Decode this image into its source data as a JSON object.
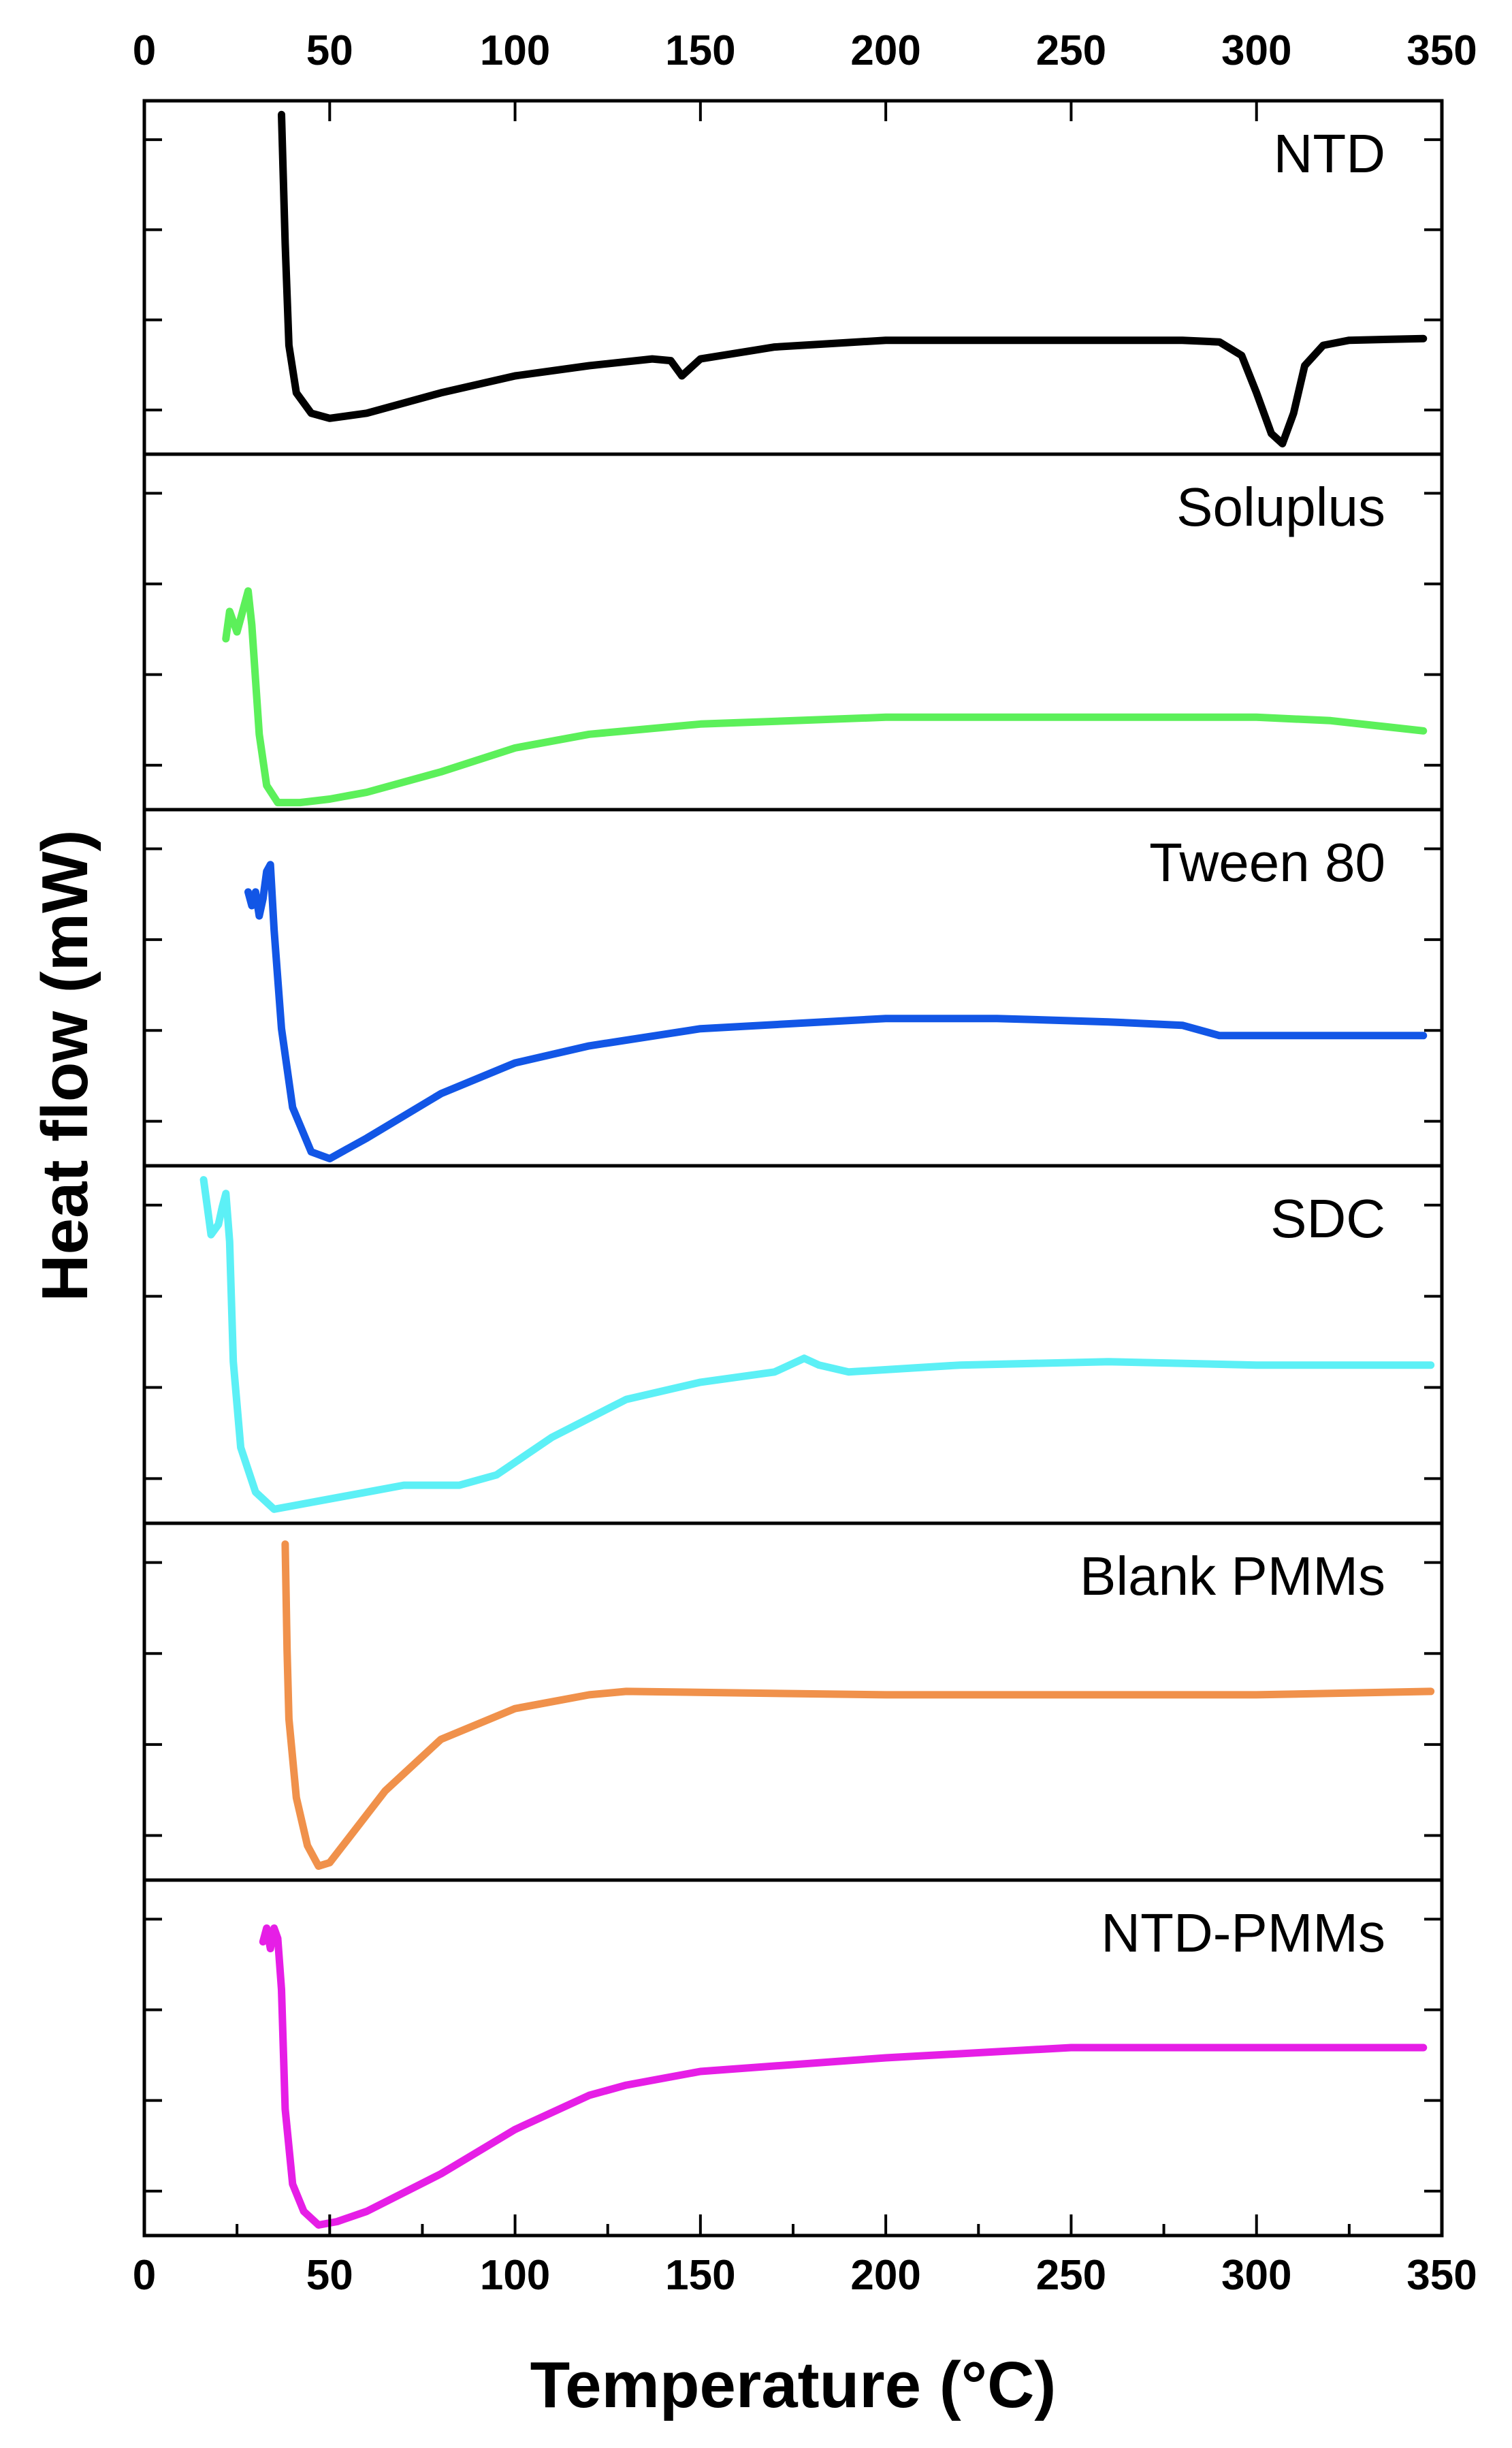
{
  "chart_data": {
    "type": "line",
    "xlabel": "Temperature (°C)",
    "ylabel": "Heat flow (mW)",
    "xlim": [
      0,
      350
    ],
    "xticks": [
      "0",
      "50",
      "100",
      "150",
      "200",
      "250",
      "300",
      "350"
    ],
    "top_xticks": [
      "0",
      "50",
      "100",
      "150",
      "200",
      "250",
      "300",
      "350"
    ],
    "y_tick_labels_shown": false,
    "series": [
      {
        "name": "NTD",
        "color": "#000000",
        "x": [
          37,
          38,
          39,
          41,
          45,
          50,
          60,
          80,
          100,
          120,
          137,
          142,
          145,
          150,
          170,
          200,
          250,
          280,
          290,
          296,
          300,
          304,
          307,
          310,
          313,
          318,
          325,
          345
        ],
        "y": [
          0.02,
          0.4,
          0.7,
          0.84,
          0.9,
          0.915,
          0.9,
          0.84,
          0.79,
          0.76,
          0.74,
          0.745,
          0.79,
          0.74,
          0.705,
          0.685,
          0.685,
          0.685,
          0.69,
          0.73,
          0.84,
          0.96,
          0.99,
          0.9,
          0.76,
          0.7,
          0.685,
          0.68
        ]
      },
      {
        "name": "Soluplus",
        "color": "#5cf05a",
        "x": [
          22,
          23,
          25,
          26,
          28,
          29,
          31,
          33,
          36,
          42,
          50,
          60,
          80,
          100,
          120,
          150,
          200,
          250,
          300,
          320,
          345
        ],
        "y": [
          0.52,
          0.44,
          0.5,
          0.46,
          0.38,
          0.48,
          0.8,
          0.95,
          1.0,
          1.0,
          0.99,
          0.97,
          0.91,
          0.84,
          0.8,
          0.77,
          0.75,
          0.75,
          0.75,
          0.76,
          0.79
        ]
      },
      {
        "name": "Tween 80",
        "color": "#1256e6",
        "x": [
          28,
          29,
          30,
          31,
          32,
          33,
          34,
          35,
          37,
          40,
          45,
          50,
          60,
          80,
          100,
          120,
          150,
          200,
          230,
          260,
          280,
          290,
          300,
          345
        ],
        "y": [
          0.22,
          0.26,
          0.22,
          0.29,
          0.24,
          0.16,
          0.14,
          0.33,
          0.62,
          0.85,
          0.98,
          1.0,
          0.94,
          0.81,
          0.72,
          0.67,
          0.62,
          0.59,
          0.59,
          0.6,
          0.61,
          0.64,
          0.64,
          0.64
        ]
      },
      {
        "name": "SDC",
        "color": "#5cf0f6",
        "x": [
          16,
          17,
          18,
          20,
          21,
          22,
          23,
          24,
          26,
          30,
          35,
          40,
          55,
          70,
          85,
          95,
          110,
          130,
          150,
          170,
          178,
          182,
          190,
          220,
          260,
          300,
          347
        ],
        "y": [
          0.02,
          0.1,
          0.18,
          0.15,
          0.1,
          0.06,
          0.2,
          0.55,
          0.8,
          0.93,
          0.98,
          0.97,
          0.94,
          0.91,
          0.91,
          0.88,
          0.77,
          0.66,
          0.61,
          0.58,
          0.54,
          0.56,
          0.58,
          0.56,
          0.55,
          0.56,
          0.56
        ]
      },
      {
        "name": "Blank PMMs",
        "color": "#f0914b",
        "x": [
          38,
          38.5,
          39,
          41,
          44,
          47,
          50,
          55,
          65,
          80,
          100,
          120,
          130,
          200,
          250,
          300,
          347
        ],
        "y": [
          0.04,
          0.35,
          0.55,
          0.78,
          0.92,
          0.98,
          0.97,
          0.9,
          0.76,
          0.61,
          0.52,
          0.48,
          0.47,
          0.48,
          0.48,
          0.48,
          0.47
        ]
      },
      {
        "name": "NTD-PMMs",
        "color": "#e61ee6",
        "x": [
          32,
          33,
          34,
          35,
          36,
          37,
          38,
          40,
          43,
          47,
          52,
          60,
          80,
          100,
          120,
          130,
          150,
          200,
          250,
          300,
          345
        ],
        "y": [
          0.16,
          0.12,
          0.18,
          0.12,
          0.15,
          0.3,
          0.65,
          0.87,
          0.95,
          0.99,
          0.98,
          0.95,
          0.84,
          0.71,
          0.61,
          0.58,
          0.54,
          0.5,
          0.47,
          0.47,
          0.47
        ]
      }
    ]
  }
}
